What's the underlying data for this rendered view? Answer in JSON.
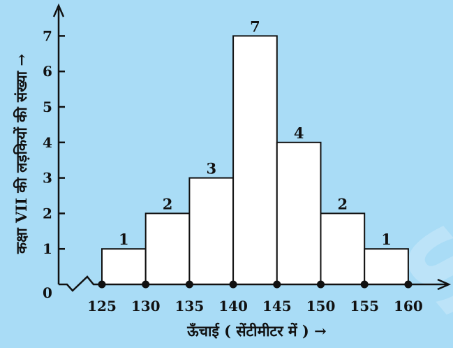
{
  "chart_data": {
    "type": "bar",
    "bins": [
      {
        "from": 125,
        "to": 130,
        "value": 1
      },
      {
        "from": 130,
        "to": 135,
        "value": 2
      },
      {
        "from": 135,
        "to": 140,
        "value": 3
      },
      {
        "from": 140,
        "to": 145,
        "value": 7
      },
      {
        "from": 145,
        "to": 150,
        "value": 4
      },
      {
        "from": 150,
        "to": 155,
        "value": 2
      },
      {
        "from": 155,
        "to": 160,
        "value": 1
      }
    ],
    "x_ticks": [
      "125",
      "130",
      "135",
      "140",
      "145",
      "150",
      "155",
      "160"
    ],
    "y_ticks": [
      "1",
      "2",
      "3",
      "4",
      "5",
      "6",
      "7"
    ],
    "origin_label": "0",
    "xlabel": "ऊँचाई ( सेंटीमीटर में ) →",
    "ylabel": "कक्षा VII की लड़कियों की संख्या →",
    "ylim": [
      0,
      7.8
    ],
    "xlim": [
      125,
      160
    ],
    "axis_break": true,
    "grid": false,
    "colors": {
      "background": "#a9dcf6",
      "bar_fill": "#ffffff",
      "stroke": "#111111"
    }
  },
  "watermark": "S"
}
